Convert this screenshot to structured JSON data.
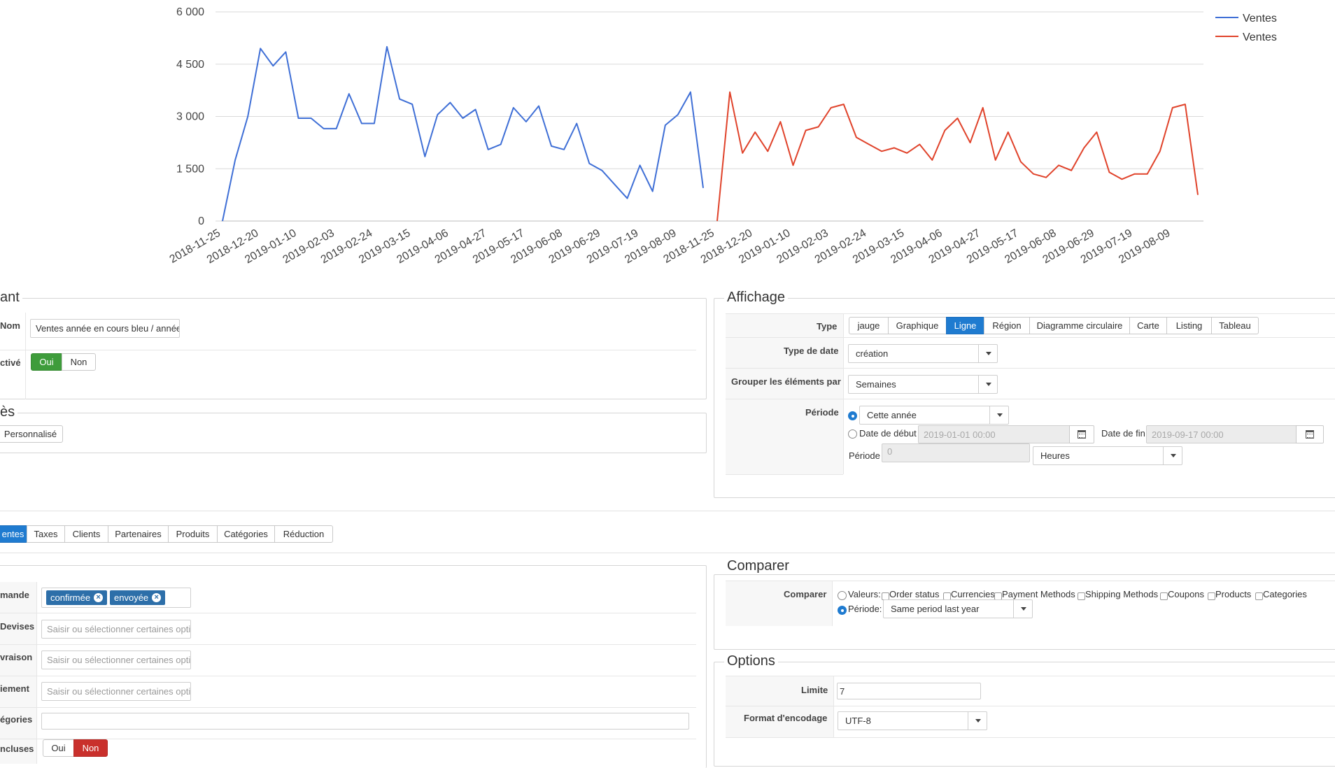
{
  "chart_data": {
    "type": "line",
    "ylim": [
      0,
      6000
    ],
    "yticks": [
      "0",
      "1 500",
      "3 000",
      "4 500",
      "6 000"
    ],
    "xticks": [
      "2018-11-25",
      "2018-12-20",
      "2019-01-10",
      "2019-02-03",
      "2019-02-24",
      "2019-03-15",
      "2019-04-06",
      "2019-04-27",
      "2019-05-17",
      "2019-06-08",
      "2019-06-29",
      "2019-07-19",
      "2019-08-09",
      "2018-11-25",
      "2018-12-20",
      "2019-01-10",
      "2019-02-03",
      "2019-02-24",
      "2019-03-15",
      "2019-04-06",
      "2019-04-27",
      "2019-05-17",
      "2019-06-08",
      "2019-06-29",
      "2019-07-19",
      "2019-08-09"
    ],
    "legend_position": "top-right",
    "series": [
      {
        "name": "Ventes",
        "color": "#3f6fd6",
        "values": [
          0,
          1750,
          3000,
          4950,
          4450,
          4850,
          2950,
          2950,
          2650,
          2650,
          3650,
          2800,
          2800,
          5000,
          3500,
          3350,
          1850,
          3050,
          3400,
          2950,
          3200,
          2050,
          2200,
          3250,
          2850,
          3300,
          2150,
          2050,
          2800,
          1650,
          1450,
          1050,
          650,
          1600,
          850,
          2750,
          3050,
          3700,
          950
        ]
      },
      {
        "name": "Ventes",
        "color": "#e0432b",
        "values": [
          0,
          3700,
          1950,
          2550,
          2000,
          2850,
          1600,
          2600,
          2700,
          3250,
          3350,
          2400,
          2200,
          2000,
          2100,
          1950,
          2200,
          1750,
          2600,
          2950,
          2250,
          3250,
          1750,
          2550,
          1700,
          1350,
          1250,
          1600,
          1450,
          2100,
          2550,
          1400,
          1200,
          1350,
          1350,
          2000,
          3250,
          3350,
          750
        ]
      }
    ]
  },
  "left_top": {
    "legend": "ant",
    "nom_label": "Nom",
    "nom_value": "Ventes année en cours bleu / année",
    "active_label": "ctivé",
    "oui": "Oui",
    "non": "Non"
  },
  "left_mid": {
    "legend": "ès",
    "personnalise": "Personnalisé"
  },
  "tabs": [
    "entes",
    "Taxes",
    "Clients",
    "Partenaires",
    "Produits",
    "Catégories",
    "Réduction"
  ],
  "filters": {
    "commande_label": "mande",
    "tag1": "confirmée",
    "tag2": "envoyée",
    "devises_label": "Devises",
    "livraison_label": "vraison",
    "paiement_label": "iement",
    "placeholder": "Saisir ou sélectionner certaines options",
    "categories_label": "égories",
    "incluses_label": "ncluses",
    "oui": "Oui",
    "non": "Non"
  },
  "affichage": {
    "legend": "Affichage",
    "type_label": "Type",
    "types": [
      "jauge",
      "Graphique",
      "Ligne",
      "Région",
      "Diagramme circulaire",
      "Carte",
      "Listing",
      "Tableau"
    ],
    "type_date_label": "Type de date",
    "type_date_value": "création",
    "grouper_label": "Grouper les éléments par",
    "grouper_value": "Semaines",
    "periode_label": "Période",
    "periode_value": "Cette année",
    "date_debut_label": "Date de début",
    "date_debut_value": "2019-01-01 00:00",
    "date_fin_label": "Date de fin",
    "date_fin_value": "2019-09-17 00:00",
    "periode2_label": "Période",
    "periode2_value": "0",
    "heures_value": "Heures"
  },
  "comparer": {
    "legend": "Comparer",
    "label": "Comparer",
    "valeurs_label": "Valeurs:",
    "options": [
      "Order status",
      "Currencies",
      "Payment Methods",
      "Shipping Methods",
      "Coupons",
      "Products",
      "Categories"
    ],
    "periode_label": "Période:",
    "periode_value": "Same period last year"
  },
  "options": {
    "legend": "Options",
    "limite_label": "Limite",
    "limite_value": "7",
    "encodage_label": "Format d'encodage",
    "encodage_value": "UTF-8"
  }
}
